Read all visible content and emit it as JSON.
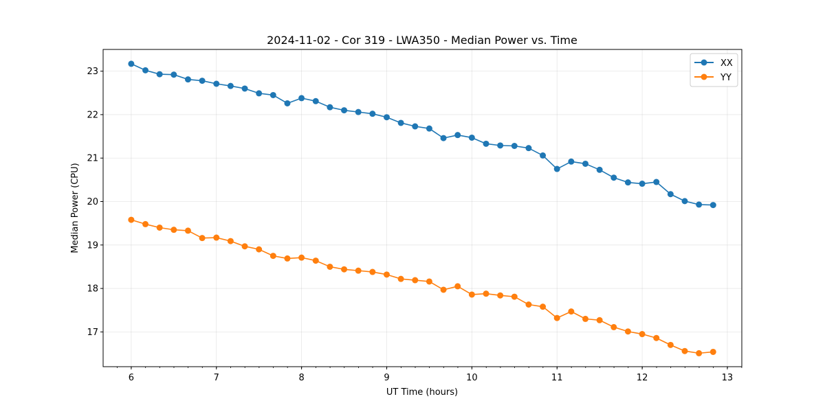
{
  "chart_data": {
    "type": "line",
    "title": "2024-11-02 - Cor 319 - LWA350 - Median Power vs. Time",
    "xlabel": "UT Time (hours)",
    "ylabel": "Median Power (CPU)",
    "xlim": [
      5.67,
      13.17
    ],
    "ylim": [
      16.2,
      23.5
    ],
    "x_ticks": [
      6,
      7,
      8,
      9,
      10,
      11,
      12,
      13
    ],
    "x_minor_step": 0.1667,
    "y_ticks": [
      17,
      18,
      19,
      20,
      21,
      22,
      23
    ],
    "grid": true,
    "legend_position": "top-right",
    "x": [
      6.0,
      6.1667,
      6.3333,
      6.5,
      6.6667,
      6.8333,
      7.0,
      7.1667,
      7.3333,
      7.5,
      7.6667,
      7.8333,
      8.0,
      8.1667,
      8.3333,
      8.5,
      8.6667,
      8.8333,
      9.0,
      9.1667,
      9.3333,
      9.5,
      9.6667,
      9.8333,
      10.0,
      10.1667,
      10.3333,
      10.5,
      10.6667,
      10.8333,
      11.0,
      11.1667,
      11.3333,
      11.5,
      11.6667,
      11.8333,
      12.0,
      12.1667,
      12.3333,
      12.5,
      12.6667,
      12.8333
    ],
    "series": [
      {
        "name": "XX",
        "color": "#1f77b4",
        "values": [
          23.17,
          23.02,
          22.93,
          22.92,
          22.81,
          22.78,
          22.71,
          22.66,
          22.6,
          22.49,
          22.45,
          22.26,
          22.38,
          22.31,
          22.17,
          22.1,
          22.06,
          22.02,
          21.94,
          21.81,
          21.73,
          21.68,
          21.46,
          21.53,
          21.47,
          21.33,
          21.29,
          21.28,
          21.23,
          21.06,
          20.75,
          20.92,
          20.87,
          20.73,
          20.55,
          20.44,
          20.41,
          20.45,
          20.17,
          20.01,
          19.93,
          19.92
        ]
      },
      {
        "name": "YY",
        "color": "#ff7f0e",
        "values": [
          19.58,
          19.48,
          19.4,
          19.35,
          19.33,
          19.16,
          19.17,
          19.09,
          18.97,
          18.9,
          18.75,
          18.69,
          18.71,
          18.64,
          18.5,
          18.44,
          18.41,
          18.38,
          18.32,
          18.22,
          18.19,
          18.16,
          17.97,
          18.05,
          17.86,
          17.88,
          17.84,
          17.81,
          17.63,
          17.58,
          17.32,
          17.47,
          17.3,
          17.27,
          17.11,
          17.01,
          16.95,
          16.86,
          16.7,
          16.56,
          16.51,
          16.54
        ]
      }
    ]
  }
}
